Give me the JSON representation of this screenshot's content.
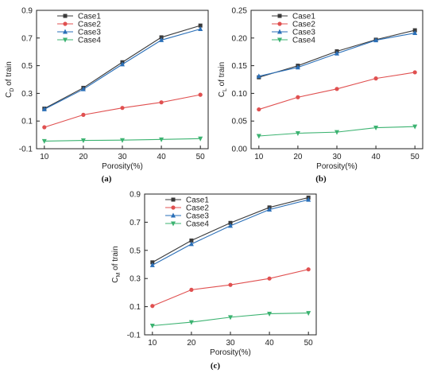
{
  "chart_data": [
    {
      "type": "line",
      "panel_label": "(a)",
      "xlabel": "Porosity(%)",
      "ylabel_main": "C",
      "ylabel_sub": "D",
      "ylabel_rest": " of train",
      "x": [
        10,
        20,
        30,
        40,
        50
      ],
      "xlim": [
        8,
        52
      ],
      "ylim": [
        -0.1,
        0.9
      ],
      "yticks": [
        -0.1,
        0.1,
        0.3,
        0.5,
        0.7,
        0.9
      ],
      "ytick_labels": [
        "-0.1",
        "0.1",
        "0.3",
        "0.5",
        "0.7",
        "0.9"
      ],
      "legend_position": "top-left",
      "series": [
        {
          "name": "Case1",
          "color": "#3a3a3a",
          "marker": "square",
          "values": [
            0.19,
            0.34,
            0.525,
            0.705,
            0.79
          ]
        },
        {
          "name": "Case2",
          "color": "#e05050",
          "marker": "circle",
          "values": [
            0.055,
            0.145,
            0.195,
            0.235,
            0.29
          ]
        },
        {
          "name": "Case3",
          "color": "#2a6fb8",
          "marker": "triangle-up",
          "values": [
            0.185,
            0.33,
            0.51,
            0.685,
            0.765
          ]
        },
        {
          "name": "Case4",
          "color": "#3cb371",
          "marker": "triangle-down",
          "values": [
            -0.045,
            -0.04,
            -0.038,
            -0.033,
            -0.027
          ]
        }
      ]
    },
    {
      "type": "line",
      "panel_label": "(b)",
      "xlabel": "Porosity(%)",
      "ylabel_main": "C",
      "ylabel_sub": "L",
      "ylabel_rest": " of train",
      "x": [
        10,
        20,
        30,
        40,
        50
      ],
      "xlim": [
        8,
        52
      ],
      "ylim": [
        0.0,
        0.25
      ],
      "yticks": [
        0.0,
        0.05,
        0.1,
        0.15,
        0.2,
        0.25
      ],
      "ytick_labels": [
        "0.00",
        "0.05",
        "0.10",
        "0.15",
        "0.20",
        "0.25"
      ],
      "legend_position": "top-left",
      "series": [
        {
          "name": "Case1",
          "color": "#3a3a3a",
          "marker": "square",
          "values": [
            0.129,
            0.15,
            0.176,
            0.197,
            0.214
          ]
        },
        {
          "name": "Case2",
          "color": "#e05050",
          "marker": "circle",
          "values": [
            0.071,
            0.093,
            0.108,
            0.127,
            0.138
          ]
        },
        {
          "name": "Case3",
          "color": "#2a6fb8",
          "marker": "triangle-up",
          "values": [
            0.131,
            0.147,
            0.172,
            0.196,
            0.209
          ]
        },
        {
          "name": "Case4",
          "color": "#3cb371",
          "marker": "triangle-down",
          "values": [
            0.023,
            0.028,
            0.03,
            0.038,
            0.04
          ]
        }
      ]
    },
    {
      "type": "line",
      "panel_label": "(c)",
      "xlabel": "Porosity(%)",
      "ylabel_main": "C",
      "ylabel_sub": "M",
      "ylabel_rest": " of train",
      "x": [
        10,
        20,
        30,
        40,
        50
      ],
      "xlim": [
        8,
        52
      ],
      "ylim": [
        -0.1,
        0.9
      ],
      "yticks": [
        -0.1,
        0.1,
        0.3,
        0.5,
        0.7,
        0.9
      ],
      "ytick_labels": [
        "-0.1",
        "0.1",
        "0.3",
        "0.5",
        "0.7",
        "0.9"
      ],
      "legend_position": "top-left",
      "series": [
        {
          "name": "Case1",
          "color": "#3a3a3a",
          "marker": "square",
          "values": [
            0.415,
            0.57,
            0.695,
            0.805,
            0.875
          ]
        },
        {
          "name": "Case2",
          "color": "#e05050",
          "marker": "circle",
          "values": [
            0.105,
            0.22,
            0.255,
            0.3,
            0.365
          ]
        },
        {
          "name": "Case3",
          "color": "#2a6fb8",
          "marker": "triangle-up",
          "values": [
            0.395,
            0.545,
            0.675,
            0.79,
            0.86
          ]
        },
        {
          "name": "Case4",
          "color": "#3cb371",
          "marker": "triangle-down",
          "values": [
            -0.035,
            -0.01,
            0.025,
            0.05,
            0.055
          ]
        }
      ]
    }
  ]
}
